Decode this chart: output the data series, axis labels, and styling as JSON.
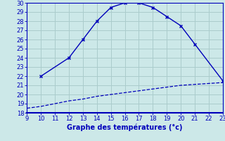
{
  "title": "Graphe des températures (°c)",
  "x_upper": [
    10,
    12,
    13,
    14,
    15,
    16,
    17,
    18,
    19,
    20,
    21,
    23
  ],
  "y_upper": [
    22,
    24,
    26,
    28.0,
    29.5,
    30,
    30,
    29.5,
    28.5,
    27.5,
    25.5,
    21.5
  ],
  "x_lower": [
    9,
    10,
    11,
    12,
    13,
    14,
    15,
    16,
    17,
    18,
    19,
    20,
    21,
    22,
    23
  ],
  "y_lower": [
    18.5,
    18.7,
    19.0,
    19.3,
    19.5,
    19.8,
    20.0,
    20.2,
    20.4,
    20.6,
    20.8,
    21.0,
    21.1,
    21.2,
    21.3
  ],
  "line_color": "#0000bb",
  "bg_color": "#cce8e8",
  "grid_color": "#aacccc",
  "axis_color": "#0000bb",
  "text_color": "#0000bb",
  "xlim": [
    9,
    23
  ],
  "ylim": [
    18,
    30
  ],
  "xticks": [
    9,
    10,
    11,
    12,
    13,
    14,
    15,
    16,
    17,
    18,
    19,
    20,
    21,
    22,
    23
  ],
  "yticks": [
    18,
    19,
    20,
    21,
    22,
    23,
    24,
    25,
    26,
    27,
    28,
    29,
    30
  ],
  "xlabel_fontsize": 7.0,
  "tick_fontsize": 6.0
}
